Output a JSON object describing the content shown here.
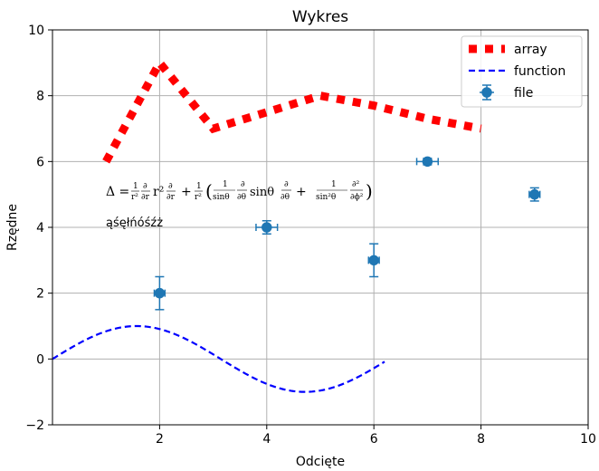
{
  "chart_data": {
    "type": "line",
    "title": "Wykres",
    "xlabel": "Odcięte",
    "ylabel": "Rzędne",
    "xlim": [
      0.0,
      10.0
    ],
    "ylim": [
      -2.0,
      10.0
    ],
    "xticks": [
      2,
      4,
      6,
      8,
      10
    ],
    "xtick_labels": [
      "2",
      "4",
      "6",
      "8",
      "10"
    ],
    "yticks": [
      -2,
      0,
      2,
      4,
      6,
      8,
      10
    ],
    "ytick_labels": [
      "−2",
      "0",
      "2",
      "4",
      "6",
      "8",
      "10"
    ],
    "grid": true,
    "legend_position": "top-right",
    "series": [
      {
        "name": "array",
        "kind": "line",
        "style": "dotted-thick",
        "color": "#ff0000",
        "x": [
          1,
          2,
          3,
          4,
          5,
          6,
          7,
          8
        ],
        "y": [
          6,
          9,
          7,
          7.5,
          8,
          7.7,
          7.3,
          7
        ]
      },
      {
        "name": "function",
        "kind": "line",
        "style": "dashed",
        "color": "#0000ff",
        "expression": "sin(x)",
        "x_range": [
          0,
          6.2
        ]
      },
      {
        "name": "file",
        "kind": "errorbar",
        "color": "#1f77b4",
        "x": [
          2,
          4,
          6,
          7,
          9
        ],
        "y": [
          2,
          4,
          3,
          6,
          5
        ],
        "x_err": [
          0.1,
          0.2,
          0.1,
          0.2,
          0.1
        ],
        "y_err": [
          0.5,
          0.2,
          0.5,
          0.1,
          0.2
        ]
      }
    ],
    "annotations": [
      {
        "text": "Δ = 1/r² ∂/∂r r² ∂/∂r + 1/r² (1/sinθ ∂/∂θ sinθ ∂/∂θ + 1/sin²θ ∂²/∂ϕ²)",
        "x": 1.0,
        "y": 5.0
      },
      {
        "text": "ąśęłńóśźż",
        "x": 1.0,
        "y": 4.0
      }
    ]
  }
}
